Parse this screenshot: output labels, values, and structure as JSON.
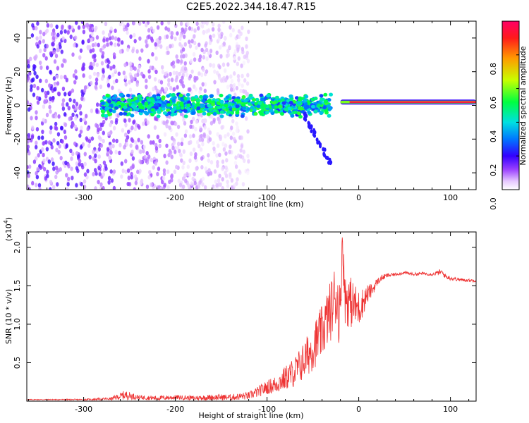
{
  "title": "C2E5.2022.344.18.47.R15",
  "colors": {
    "snr_line": "#ee3333",
    "spectrum_low": "#6a00ff",
    "spectrum_core": "#00e0c0",
    "spectrum_line": "#ff2020",
    "axis": "#000000"
  },
  "chart_data": [
    {
      "type": "heatmap",
      "xlabel": "Height of straight line (km)",
      "ylabel": "Frequency (Hz)",
      "xlim": [
        -362,
        128
      ],
      "ylim": [
        -50,
        50
      ],
      "xticks": [
        -300,
        -200,
        -100,
        0,
        100
      ],
      "xtick_labels": [
        "-300",
        "-200",
        "-100",
        "0",
        "100"
      ],
      "yticks": [
        -40,
        -20,
        0,
        20,
        40
      ],
      "ytick_labels": [
        "-40",
        "-20",
        "0",
        "20",
        "40"
      ],
      "colorbar": {
        "label": "Normalized spectral amplitude",
        "range": [
          0,
          1
        ],
        "ticks": [
          0.0,
          0.2,
          0.4,
          0.6,
          0.8
        ],
        "tick_labels": [
          "0.0",
          "0.2",
          "0.4",
          "0.6",
          "0.8"
        ]
      },
      "features": [
        {
          "name": "diffuse noise",
          "x_range": [
            -362,
            -120
          ],
          "amplitude": 0.15
        },
        {
          "name": "scintillation band",
          "x_range": [
            -280,
            -30
          ],
          "freq_center": 0,
          "freq_halfwidth": 7,
          "amplitude": 0.45
        },
        {
          "name": "descending branch",
          "x_range": [
            -60,
            -30
          ],
          "freq_from": -5,
          "freq_to": -35,
          "amplitude": 0.2
        },
        {
          "name": "single tone",
          "x_range": [
            -20,
            128
          ],
          "freq_center": 2,
          "amplitude": 0.95
        }
      ]
    },
    {
      "type": "line",
      "xlabel": "Height of straight line (km)",
      "ylabel": "SNR (10 * v/v)",
      "scale_label": "(x10",
      "scale_exp": "4",
      "xlim": [
        -362,
        128
      ],
      "ylim": [
        0,
        2.2
      ],
      "xticks": [
        -300,
        -200,
        -100,
        0,
        100
      ],
      "xtick_labels": [
        "-300",
        "-200",
        "-100",
        "0",
        "100"
      ],
      "yticks": [
        0.5,
        1.0,
        1.5,
        2.0
      ],
      "ytick_labels": [
        "0.5",
        "1.0",
        "1.5",
        "2.0"
      ],
      "series": [
        {
          "x": [
            -362,
            -300,
            -270,
            -255,
            -240,
            -220,
            -200,
            -180,
            -160,
            -140,
            -120,
            -110,
            -100,
            -90,
            -80,
            -70,
            -60,
            -50,
            -40,
            -30,
            -25,
            -20,
            -18,
            -15,
            -10,
            -5,
            0,
            5,
            10,
            15,
            20,
            25,
            30,
            40,
            50,
            60,
            70,
            80,
            90,
            95,
            100,
            110,
            120,
            128
          ],
          "y": [
            0.02,
            0.02,
            0.03,
            0.08,
            0.05,
            0.04,
            0.05,
            0.04,
            0.05,
            0.05,
            0.07,
            0.12,
            0.18,
            0.22,
            0.3,
            0.38,
            0.52,
            0.7,
            0.9,
            1.2,
            1.4,
            1.1,
            2.15,
            1.35,
            1.3,
            1.25,
            1.2,
            1.3,
            1.4,
            1.45,
            1.55,
            1.6,
            1.63,
            1.65,
            1.67,
            1.65,
            1.66,
            1.65,
            1.68,
            1.62,
            1.6,
            1.58,
            1.57,
            1.57
          ],
          "noise": [
            0.005,
            0.008,
            0.02,
            0.06,
            0.03,
            0.03,
            0.03,
            0.03,
            0.04,
            0.04,
            0.05,
            0.07,
            0.09,
            0.12,
            0.16,
            0.2,
            0.25,
            0.3,
            0.35,
            0.4,
            0.45,
            0.45,
            0.2,
            0.35,
            0.35,
            0.3,
            0.25,
            0.18,
            0.12,
            0.08,
            0.05,
            0.04,
            0.03,
            0.02,
            0.02,
            0.02,
            0.02,
            0.02,
            0.04,
            0.03,
            0.03,
            0.02,
            0.02,
            0.02
          ]
        }
      ]
    }
  ]
}
